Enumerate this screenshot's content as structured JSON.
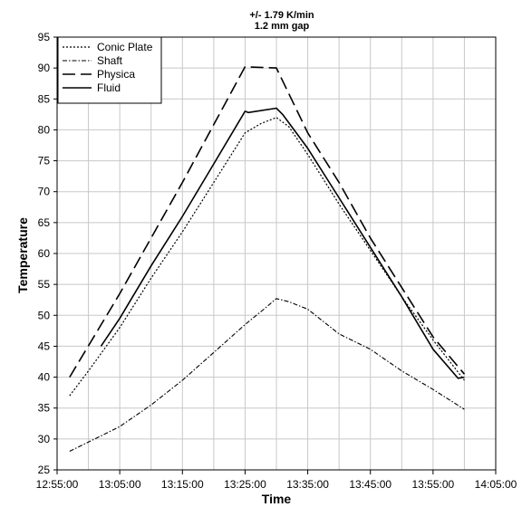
{
  "chart_data": {
    "type": "line",
    "title": "+/- 1.79 K/min",
    "subtitle": "1.2 mm gap",
    "xlabel": "Time",
    "ylabel": "Temperature",
    "xlim": [
      "12:55:00",
      "14:05:00"
    ],
    "ylim": [
      25,
      95
    ],
    "x_ticks": [
      "12:55:00",
      "13:05:00",
      "13:15:00",
      "13:25:00",
      "13:35:00",
      "13:45:00",
      "13:55:00",
      "14:05:00"
    ],
    "y_ticks": [
      25,
      30,
      35,
      40,
      45,
      50,
      55,
      60,
      65,
      70,
      75,
      80,
      85,
      90,
      95
    ],
    "x_minor_ticks_per_major": 2,
    "grid": true,
    "legend_position": "top-left",
    "series": [
      {
        "name": "Conic Plate",
        "style": "dotted",
        "points": [
          [
            "12:57:00",
            37.0
          ],
          [
            "13:00:00",
            41.0
          ],
          [
            "13:05:00",
            48.0
          ],
          [
            "13:10:00",
            56.0
          ],
          [
            "13:15:00",
            63.5
          ],
          [
            "13:20:00",
            71.5
          ],
          [
            "13:25:00",
            79.5
          ],
          [
            "13:27:30",
            81.0
          ],
          [
            "13:30:00",
            82.0
          ],
          [
            "13:32:00",
            80.5
          ],
          [
            "13:35:00",
            76.0
          ],
          [
            "13:40:00",
            68.0
          ],
          [
            "13:45:00",
            60.5
          ],
          [
            "13:50:00",
            53.0
          ],
          [
            "13:55:00",
            46.0
          ],
          [
            "14:00:00",
            39.5
          ]
        ]
      },
      {
        "name": "Shaft",
        "style": "dash-dot",
        "points": [
          [
            "12:57:00",
            28.0
          ],
          [
            "13:00:00",
            29.5
          ],
          [
            "13:05:00",
            32.0
          ],
          [
            "13:10:00",
            35.5
          ],
          [
            "13:15:00",
            39.5
          ],
          [
            "13:20:00",
            44.0
          ],
          [
            "13:25:00",
            48.5
          ],
          [
            "13:28:00",
            51.0
          ],
          [
            "13:30:00",
            52.7
          ],
          [
            "13:32:00",
            52.2
          ],
          [
            "13:35:00",
            51.0
          ],
          [
            "13:40:00",
            47.0
          ],
          [
            "13:45:00",
            44.5
          ],
          [
            "13:50:00",
            41.0
          ],
          [
            "13:55:00",
            38.0
          ],
          [
            "14:00:00",
            34.8
          ]
        ]
      },
      {
        "name": "Physica",
        "style": "long-dash",
        "points": [
          [
            "12:57:00",
            40.0
          ],
          [
            "13:05:00",
            53.5
          ],
          [
            "13:15:00",
            71.5
          ],
          [
            "13:25:00",
            90.2
          ],
          [
            "13:30:00",
            90.0
          ],
          [
            "13:35:00",
            79.5
          ],
          [
            "13:40:00",
            71.5
          ],
          [
            "13:45:00",
            62.5
          ],
          [
            "13:50:00",
            54.5
          ],
          [
            "13:55:00",
            46.5
          ],
          [
            "14:00:00",
            40.5
          ]
        ]
      },
      {
        "name": "Fluid",
        "style": "solid",
        "points": [
          [
            "13:02:00",
            45.0
          ],
          [
            "13:05:00",
            49.5
          ],
          [
            "13:10:00",
            58.0
          ],
          [
            "13:15:00",
            66.0
          ],
          [
            "13:20:00",
            74.5
          ],
          [
            "13:25:00",
            83.0
          ],
          [
            "13:25:30",
            82.8
          ],
          [
            "13:30:00",
            83.5
          ],
          [
            "13:31:00",
            82.5
          ],
          [
            "13:35:00",
            77.0
          ],
          [
            "13:40:00",
            69.0
          ],
          [
            "13:45:00",
            61.0
          ],
          [
            "13:50:00",
            53.0
          ],
          [
            "13:55:00",
            44.5
          ],
          [
            "13:59:00",
            39.8
          ],
          [
            "14:00:00",
            40.0
          ]
        ]
      }
    ]
  }
}
